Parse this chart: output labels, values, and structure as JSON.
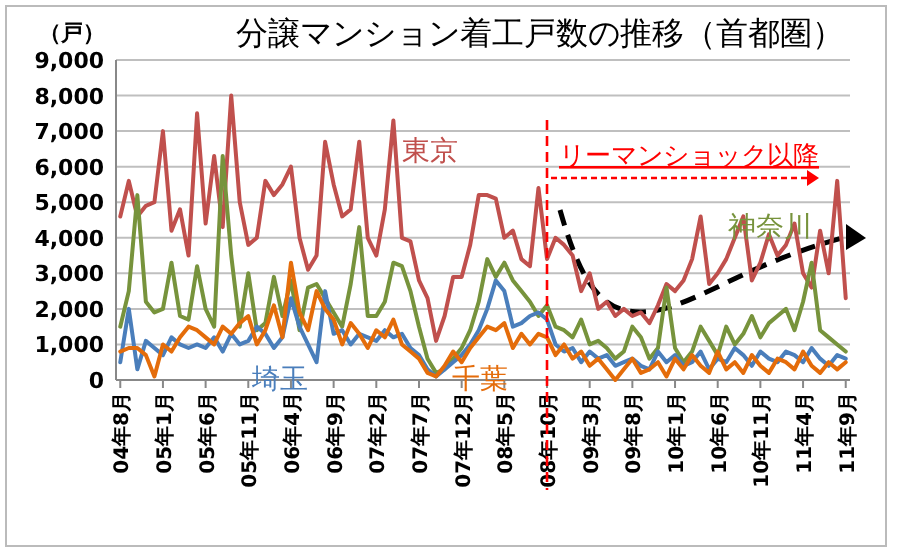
{
  "chart_data": {
    "type": "line",
    "title": "分譲マンション着工戸数の推移（首都圏）",
    "ylabel": "（戸）",
    "categories": [
      "04年8月",
      null,
      null,
      null,
      null,
      "05年1月",
      null,
      null,
      null,
      null,
      "05年6月",
      null,
      null,
      null,
      null,
      "05年11月",
      null,
      null,
      null,
      null,
      "06年4月",
      null,
      null,
      null,
      null,
      "06年9月",
      null,
      null,
      null,
      null,
      "07年2月",
      null,
      null,
      null,
      null,
      "07年7月",
      null,
      null,
      null,
      null,
      "07年12月",
      null,
      null,
      null,
      null,
      "08年5月",
      null,
      null,
      null,
      null,
      "08年10月",
      null,
      null,
      null,
      null,
      "09年3月",
      null,
      null,
      null,
      null,
      "09年8月",
      null,
      null,
      null,
      null,
      "10年1月",
      null,
      null,
      null,
      null,
      "10年6月",
      null,
      null,
      null,
      null,
      "10年11月",
      null,
      null,
      null,
      null,
      "11年4月",
      null,
      null,
      null,
      null,
      "11年9月"
    ],
    "series": [
      {
        "name": "東京",
        "color": "#c0504d",
        "values": [
          4600,
          5600,
          4600,
          4900,
          5000,
          7000,
          4200,
          4800,
          3500,
          7500,
          4400,
          6300,
          4300,
          8000,
          5000,
          3800,
          4000,
          5600,
          5200,
          5500,
          6000,
          4000,
          3100,
          3500,
          6700,
          5500,
          4600,
          4800,
          6700,
          4000,
          3500,
          4800,
          7300,
          4000,
          3900,
          2800,
          2300,
          1100,
          1800,
          2900,
          2900,
          3800,
          5200,
          5200,
          5100,
          4000,
          4200,
          3400,
          3200,
          5400,
          3400,
          4000,
          3800,
          3500,
          2500,
          3000,
          2000,
          2200,
          1800,
          2000,
          1800,
          1900,
          1600,
          2100,
          2700,
          2500,
          2800,
          3400,
          4600,
          2700,
          3000,
          3400,
          4000,
          4600,
          2800,
          3300,
          4100,
          3500,
          3800,
          4400,
          3000,
          2600,
          4200,
          3000,
          5600,
          2300
        ]
      },
      {
        "name": "神奈川",
        "color": "#77933c",
        "values": [
          1500,
          2500,
          5200,
          2200,
          1900,
          2000,
          3300,
          1800,
          1700,
          3200,
          2000,
          1500,
          6300,
          3500,
          1500,
          3000,
          1400,
          1600,
          2900,
          1800,
          2800,
          1400,
          2600,
          2700,
          2300,
          1900,
          1500,
          2700,
          4300,
          1800,
          1800,
          2200,
          3300,
          3200,
          2500,
          1500,
          600,
          200,
          300,
          600,
          900,
          1400,
          2200,
          3400,
          2900,
          3300,
          2800,
          2500,
          2200,
          1800,
          2100,
          1500,
          1400,
          1200,
          1700,
          1000,
          1100,
          900,
          600,
          800,
          1500,
          1200,
          600,
          900,
          2600,
          900,
          500,
          800,
          1500,
          1100,
          700,
          1500,
          1000,
          1300,
          1800,
          1200,
          1600,
          1800,
          2000,
          1400,
          2200,
          3300,
          1400,
          1200,
          1000,
          800
        ]
      },
      {
        "name": "埼玉",
        "color": "#4a7ebb",
        "values": [
          500,
          2000,
          300,
          1100,
          900,
          700,
          1200,
          1000,
          900,
          1000,
          900,
          1200,
          800,
          1300,
          1000,
          1100,
          1500,
          1300,
          900,
          1200,
          2300,
          1500,
          1000,
          500,
          2500,
          1300,
          1400,
          1000,
          1300,
          1200,
          1100,
          1400,
          1200,
          1300,
          900,
          700,
          300,
          100,
          300,
          500,
          700,
          1000,
          1400,
          2000,
          2800,
          2500,
          1500,
          1600,
          1800,
          1900,
          1700,
          1000,
          800,
          900,
          500,
          800,
          600,
          700,
          400,
          500,
          600,
          400,
          300,
          800,
          500,
          700,
          400,
          500,
          800,
          300,
          600,
          500,
          900,
          700,
          400,
          800,
          600,
          500,
          800,
          700,
          500,
          900,
          600,
          400,
          700,
          600
        ]
      },
      {
        "name": "千葉",
        "color": "#e46c0a",
        "values": [
          800,
          900,
          900,
          700,
          100,
          1000,
          800,
          1200,
          1500,
          1400,
          1200,
          1000,
          1500,
          1300,
          1600,
          1800,
          1000,
          1400,
          2100,
          1200,
          3300,
          1900,
          1400,
          2500,
          2000,
          1700,
          1000,
          1600,
          1300,
          900,
          1400,
          1200,
          1700,
          1000,
          800,
          600,
          200,
          100,
          400,
          800,
          500,
          900,
          1200,
          1500,
          1400,
          1600,
          900,
          1300,
          1000,
          1300,
          1200,
          700,
          1000,
          600,
          800,
          400,
          600,
          300,
          0,
          300,
          600,
          200,
          300,
          500,
          100,
          600,
          300,
          700,
          400,
          200,
          800,
          300,
          500,
          200,
          700,
          400,
          200,
          600,
          500,
          300,
          800,
          400,
          200,
          500,
          300,
          500
        ]
      }
    ],
    "ylim": [
      0,
      9000
    ],
    "yticks": [
      {
        "value": 0,
        "label": "0"
      },
      {
        "value": 1000,
        "label": "1,000"
      },
      {
        "value": 2000,
        "label": "2,000"
      },
      {
        "value": 3000,
        "label": "3,000"
      },
      {
        "value": 4000,
        "label": "4,000"
      },
      {
        "value": 5000,
        "label": "5,000"
      },
      {
        "value": 6000,
        "label": "6,000"
      },
      {
        "value": 7000,
        "label": "7,000"
      },
      {
        "value": 8000,
        "label": "8,000"
      },
      {
        "value": 9000,
        "label": "9,000"
      }
    ],
    "grid": "y",
    "legend": false,
    "line_style": "solid",
    "ref_lines": [
      {
        "axis": "x",
        "value": "08年10月",
        "label": "リーマンショック以降",
        "color": "#ff0000",
        "line_style": "dashed"
      }
    ]
  }
}
